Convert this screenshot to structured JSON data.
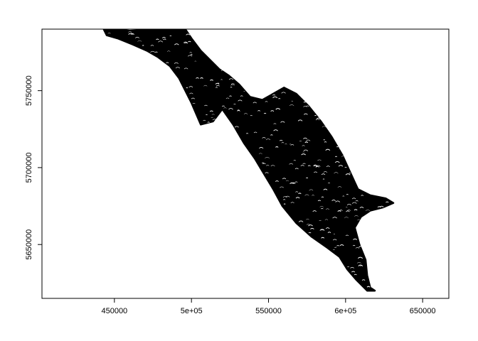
{
  "chart_data": {
    "type": "map",
    "title": "",
    "xlabel": "",
    "ylabel": "",
    "xlim": [
      403000,
      667000
    ],
    "ylim": [
      5615000,
      5790000
    ],
    "x_ticks": [
      {
        "value": 450000,
        "label": "450000"
      },
      {
        "value": 500000,
        "label": "5e+05"
      },
      {
        "value": 550000,
        "label": "550000"
      },
      {
        "value": 600000,
        "label": "6e+05"
      },
      {
        "value": 650000,
        "label": "650000"
      }
    ],
    "y_ticks": [
      {
        "value": 5650000,
        "label": "5650000"
      },
      {
        "value": 5700000,
        "label": "5700000"
      },
      {
        "value": 5750000,
        "label": "5750000"
      }
    ],
    "grid": false,
    "legend": "none",
    "colors": {
      "ink": "#000000",
      "background": "#ffffff"
    },
    "outline": [
      [
        443000,
        5790000
      ],
      [
        450000,
        5790000
      ],
      [
        460000,
        5789000
      ],
      [
        480000,
        5790000
      ],
      [
        496000,
        5790000
      ],
      [
        500000,
        5784000
      ],
      [
        506000,
        5776000
      ],
      [
        512000,
        5770000
      ],
      [
        518000,
        5764000
      ],
      [
        524000,
        5760000
      ],
      [
        531000,
        5754000
      ],
      [
        538000,
        5746000
      ],
      [
        546000,
        5744000
      ],
      [
        553000,
        5748000
      ],
      [
        560000,
        5752000
      ],
      [
        568000,
        5748000
      ],
      [
        576000,
        5740000
      ],
      [
        584000,
        5730000
      ],
      [
        591000,
        5720000
      ],
      [
        598000,
        5708000
      ],
      [
        603000,
        5697000
      ],
      [
        608000,
        5686000
      ],
      [
        616000,
        5682000
      ],
      [
        626000,
        5680000
      ],
      [
        631000,
        5677000
      ],
      [
        624000,
        5674000
      ],
      [
        616000,
        5672000
      ],
      [
        610000,
        5668000
      ],
      [
        606000,
        5661000
      ],
      [
        609000,
        5650000
      ],
      [
        613000,
        5640000
      ],
      [
        614000,
        5630000
      ],
      [
        616000,
        5622000
      ],
      [
        619000,
        5620000
      ],
      [
        614000,
        5620000
      ],
      [
        607000,
        5627000
      ],
      [
        601000,
        5634000
      ],
      [
        596000,
        5642000
      ],
      [
        588000,
        5648000
      ],
      [
        578000,
        5655000
      ],
      [
        568000,
        5664000
      ],
      [
        559000,
        5675000
      ],
      [
        553000,
        5686000
      ],
      [
        547000,
        5696000
      ],
      [
        541000,
        5706000
      ],
      [
        534000,
        5716000
      ],
      [
        527000,
        5728000
      ],
      [
        520000,
        5738000
      ],
      [
        514000,
        5730000
      ],
      [
        506000,
        5728000
      ],
      [
        500000,
        5742000
      ],
      [
        492000,
        5758000
      ],
      [
        486000,
        5766000
      ],
      [
        478000,
        5772000
      ],
      [
        471000,
        5776000
      ],
      [
        462000,
        5780000
      ],
      [
        452000,
        5784000
      ],
      [
        445000,
        5786000
      ]
    ]
  }
}
